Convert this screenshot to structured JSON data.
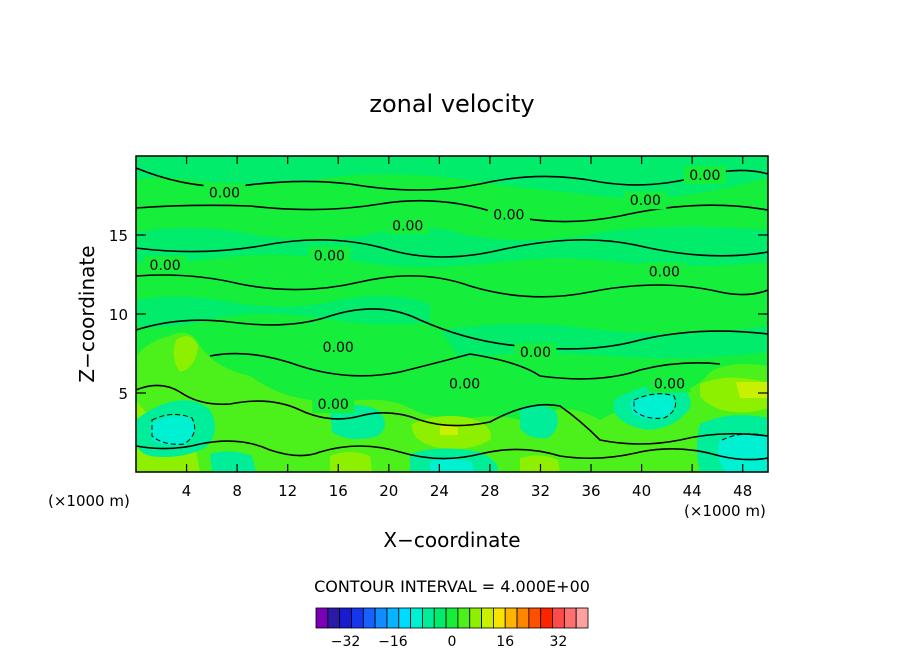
{
  "chart_data": {
    "type": "contour",
    "title": "zonal velocity",
    "xlabel": "X−coordinate",
    "ylabel": "Z−coordinate",
    "x_unit": "(×1000 m)",
    "x_unit_right": "(×1000 m)",
    "xlim": [
      0,
      50
    ],
    "ylim": [
      0,
      20
    ],
    "x_ticks": [
      4,
      8,
      12,
      16,
      20,
      24,
      28,
      32,
      36,
      40,
      44,
      48
    ],
    "y_ticks": [
      5,
      10,
      15
    ],
    "contour_interval_text": "CONTOUR INTERVAL = 4.000E+00",
    "contour_labels": [
      {
        "x": 7.0,
        "z": 17.7,
        "text": "0.00"
      },
      {
        "x": 21.5,
        "z": 15.6,
        "text": "0.00"
      },
      {
        "x": 29.5,
        "z": 16.3,
        "text": "0.00"
      },
      {
        "x": 45.0,
        "z": 18.8,
        "text": "0.00"
      },
      {
        "x": 40.3,
        "z": 17.2,
        "text": "0.00"
      },
      {
        "x": 2.3,
        "z": 13.1,
        "text": "0.00"
      },
      {
        "x": 15.3,
        "z": 13.7,
        "text": "0.00"
      },
      {
        "x": 41.8,
        "z": 12.7,
        "text": "0.00"
      },
      {
        "x": 31.6,
        "z": 7.6,
        "text": "0.00"
      },
      {
        "x": 15.6,
        "z": 4.3,
        "text": "0.00"
      },
      {
        "x": 26.0,
        "z": 5.6,
        "text": "0.00"
      },
      {
        "x": 42.2,
        "z": 5.6,
        "text": "0.00"
      },
      {
        "x": 16.0,
        "z": 7.9,
        "text": "0.00"
      }
    ],
    "colorbar": {
      "tick_labels": [
        "−32",
        "−16",
        "0",
        "16",
        "32"
      ],
      "colors": [
        "#7a00b8",
        "#2a1aa6",
        "#1a1ad0",
        "#1437ee",
        "#1560ff",
        "#0f8cff",
        "#08b4ff",
        "#00dcff",
        "#00f0d2",
        "#00ee9a",
        "#00ec6a",
        "#16ee3c",
        "#4cf01a",
        "#8cf000",
        "#c8f000",
        "#f8e400",
        "#ffb400",
        "#ff8400",
        "#ff5000",
        "#ff2400",
        "#ff4a4a",
        "#ff7070",
        "#ffa0a0"
      ]
    }
  }
}
